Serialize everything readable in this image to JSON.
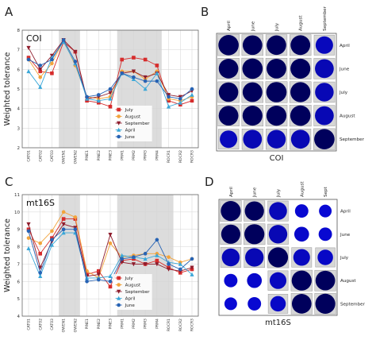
{
  "panels": {
    "A": "A",
    "B": "B",
    "C": "C",
    "D": "D"
  },
  "chart_data": [
    {
      "type": "line",
      "panel": "A",
      "inset_label": "COI",
      "ylabel": "Weighted tolerance",
      "ylim": [
        2,
        8
      ],
      "yticks": [
        2,
        3,
        4,
        5,
        6,
        7,
        8
      ],
      "x": [
        "CAT01",
        "CAT02",
        "CAT03",
        "OWEN1",
        "OWEN2",
        "PINE1",
        "PINE2",
        "PINE3",
        "PRM1",
        "PRM2",
        "PRM3",
        "PRM4",
        "ROCR1",
        "ROCR2",
        "ROCR3"
      ],
      "shaded_ranges": [
        [
          "OWEN1",
          "OWEN2"
        ],
        [
          "PRM1",
          "PRM4"
        ]
      ],
      "grid": true,
      "legend_position": "lower-center",
      "series": [
        {
          "name": "July",
          "color": "#d62c2c",
          "marker": "square",
          "values": [
            6.6,
            5.9,
            5.8,
            7.4,
            6.9,
            4.4,
            4.3,
            4.1,
            6.5,
            6.6,
            6.5,
            6.2,
            4.4,
            4.2,
            4.4
          ]
        },
        {
          "name": "August",
          "color": "#f2a33b",
          "marker": "circle",
          "values": [
            6.5,
            5.6,
            6.3,
            7.5,
            6.2,
            4.6,
            4.5,
            4.6,
            5.9,
            5.9,
            5.5,
            5.9,
            4.5,
            4.4,
            4.6
          ]
        },
        {
          "name": "September",
          "color": "#8e1c2c",
          "marker": "triangle-down",
          "values": [
            7.1,
            6.0,
            6.7,
            7.5,
            6.9,
            4.5,
            4.6,
            4.8,
            5.8,
            5.9,
            5.6,
            5.8,
            4.7,
            4.6,
            4.9
          ]
        },
        {
          "name": "April",
          "color": "#3aa7d8",
          "marker": "triangle-up",
          "values": [
            5.9,
            5.1,
            6.6,
            7.4,
            6.3,
            4.5,
            4.4,
            4.5,
            5.8,
            5.5,
            5.0,
            5.8,
            4.1,
            4.3,
            4.7
          ]
        },
        {
          "name": "June",
          "color": "#2763b4",
          "marker": "circle",
          "values": [
            6.5,
            6.2,
            6.5,
            7.5,
            6.4,
            4.6,
            4.7,
            5.0,
            5.8,
            5.6,
            5.4,
            5.4,
            4.6,
            4.5,
            5.0
          ]
        }
      ]
    },
    {
      "type": "heatmap",
      "panel": "B",
      "caption": "COI",
      "columns": [
        "April",
        "June",
        "July",
        "August",
        "September"
      ],
      "rows": [
        "April",
        "June",
        "July",
        "August",
        "September"
      ],
      "circle_color": "#00009a",
      "values": [
        [
          1.0,
          0.93,
          0.92,
          0.94,
          0.74
        ],
        [
          0.93,
          1.0,
          0.94,
          0.96,
          0.86
        ],
        [
          0.92,
          0.94,
          1.0,
          0.97,
          0.84
        ],
        [
          0.94,
          0.96,
          0.97,
          1.0,
          0.86
        ],
        [
          0.74,
          0.86,
          0.84,
          0.86,
          1.0
        ]
      ]
    },
    {
      "type": "line",
      "panel": "C",
      "inset_label": "mt16S",
      "ylabel": "Weighted tolerance",
      "ylim": [
        4,
        11
      ],
      "yticks": [
        4,
        5,
        6,
        7,
        8,
        9,
        10,
        11
      ],
      "x": [
        "CAT01",
        "CAT02",
        "CAT03",
        "OWEN1",
        "OWEN2",
        "PINE1",
        "PINE2",
        "PINE3",
        "PRM1",
        "PRM2",
        "PRM3",
        "PRM4",
        "ROCR1",
        "ROCR2",
        "ROCR3"
      ],
      "shaded_ranges": [
        [
          "OWEN1",
          "OWEN2"
        ],
        [
          "PRM1",
          "ROCR1"
        ]
      ],
      "grid": true,
      "legend_position": "lower-center",
      "series": [
        {
          "name": "July",
          "color": "#d62c2c",
          "marker": "square",
          "values": [
            9.0,
            7.6,
            8.5,
            9.6,
            9.6,
            6.4,
            6.6,
            5.7,
            7.2,
            7.3,
            7.0,
            7.2,
            6.8,
            6.5,
            6.7
          ]
        },
        {
          "name": "August",
          "color": "#f2a33b",
          "marker": "circle",
          "values": [
            8.5,
            8.2,
            8.9,
            10.0,
            9.7,
            6.6,
            6.2,
            8.2,
            7.4,
            7.5,
            7.6,
            7.6,
            7.4,
            7.1,
            7.3
          ]
        },
        {
          "name": "September",
          "color": "#8e1c2c",
          "marker": "triangle-down",
          "values": [
            9.3,
            6.8,
            8.3,
            9.3,
            9.1,
            6.3,
            6.4,
            8.7,
            7.1,
            7.0,
            7.0,
            7.0,
            6.7,
            6.6,
            6.8
          ]
        },
        {
          "name": "April",
          "color": "#3aa7d8",
          "marker": "triangle-up",
          "values": [
            7.9,
            6.3,
            8.1,
            8.8,
            8.8,
            6.2,
            6.2,
            6.3,
            7.5,
            7.4,
            7.3,
            7.5,
            7.1,
            7.0,
            6.4
          ]
        },
        {
          "name": "June",
          "color": "#2763b4",
          "marker": "circle",
          "values": [
            8.9,
            6.5,
            8.4,
            9.0,
            9.0,
            6.0,
            6.1,
            6.0,
            7.3,
            7.4,
            7.6,
            8.4,
            7.0,
            6.7,
            7.3
          ]
        }
      ]
    },
    {
      "type": "heatmap",
      "panel": "D",
      "caption": "mt16S",
      "columns": [
        "April",
        "June",
        "July",
        "August",
        "Sept"
      ],
      "rows": [
        "April",
        "June",
        "July",
        "August",
        "September"
      ],
      "circle_color": "#00009a",
      "values": [
        [
          1.0,
          0.92,
          0.8,
          0.45,
          0.4
        ],
        [
          0.92,
          1.0,
          0.86,
          0.55,
          0.45
        ],
        [
          0.8,
          0.86,
          1.0,
          0.7,
          0.6
        ],
        [
          0.45,
          0.55,
          0.7,
          1.0,
          0.96
        ],
        [
          0.4,
          0.45,
          0.6,
          0.96,
          1.0
        ]
      ]
    }
  ]
}
